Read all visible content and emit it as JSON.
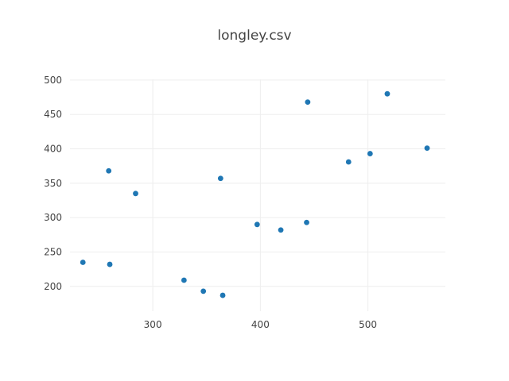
{
  "chart_data": {
    "type": "scatter",
    "title": "longley.csv",
    "xlabel": "",
    "ylabel": "",
    "xlim": [
      223,
      572
    ],
    "ylim": [
      164,
      501
    ],
    "x_ticks": [
      300,
      400,
      500
    ],
    "y_ticks": [
      200,
      250,
      300,
      350,
      400,
      450,
      500
    ],
    "grid": true,
    "marker_color": "#1f77b4",
    "points": [
      {
        "x": 235,
        "y": 235
      },
      {
        "x": 259,
        "y": 368
      },
      {
        "x": 260,
        "y": 232
      },
      {
        "x": 284,
        "y": 335
      },
      {
        "x": 329,
        "y": 209
      },
      {
        "x": 347,
        "y": 193
      },
      {
        "x": 363,
        "y": 357
      },
      {
        "x": 365,
        "y": 187
      },
      {
        "x": 397,
        "y": 290
      },
      {
        "x": 419,
        "y": 282
      },
      {
        "x": 443,
        "y": 293
      },
      {
        "x": 444,
        "y": 468
      },
      {
        "x": 482,
        "y": 381
      },
      {
        "x": 502,
        "y": 393
      },
      {
        "x": 518,
        "y": 480
      },
      {
        "x": 555,
        "y": 401
      }
    ]
  }
}
